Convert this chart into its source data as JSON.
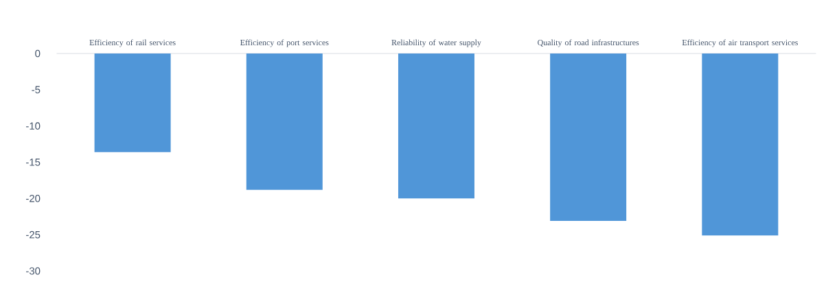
{
  "chart_data": {
    "type": "bar",
    "categories": [
      "Efficiency of rail services",
      "Efficiency of port services",
      "Reliability of water supply",
      "Quality of road infrastructures",
      "Efficiency of air transport services"
    ],
    "values": [
      -13.6,
      -18.8,
      -20.0,
      -23.1,
      -25.1
    ],
    "color": "#5096d8",
    "ylim": [
      -30,
      0
    ],
    "yticks": [
      -30,
      -25,
      -20,
      -15,
      -10,
      -5,
      0
    ],
    "grid": false
  }
}
